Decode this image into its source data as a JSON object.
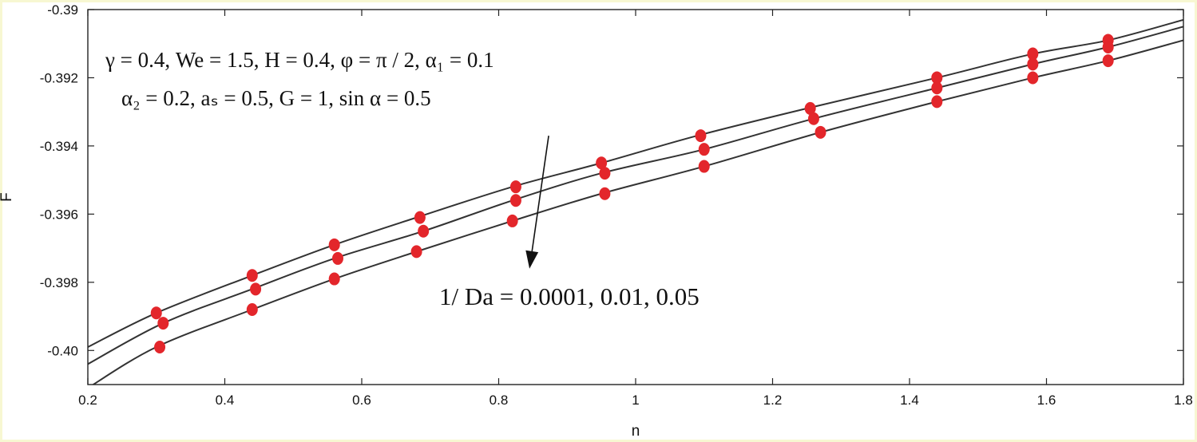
{
  "chart_data": {
    "type": "line",
    "xlabel": "n",
    "ylabel": "F",
    "xlim": [
      0.2,
      1.8
    ],
    "ylim": [
      -0.401,
      -0.39
    ],
    "xticks": [
      0.2,
      0.4,
      0.6,
      0.8,
      1,
      1.2,
      1.4,
      1.6,
      1.8
    ],
    "xtick_labels": [
      "0.2",
      "0.4",
      "0.6",
      "0.8",
      "1",
      "1.2",
      "1.4",
      "1.6",
      "1.8"
    ],
    "yticks": [
      -0.39,
      -0.392,
      -0.394,
      -0.396,
      -0.398,
      -0.4
    ],
    "ytick_labels": [
      "-0.39",
      "-0.392",
      "-0.394",
      "-0.396",
      "-0.398",
      "-0.40"
    ],
    "grid": false,
    "colors": {
      "line": "#333333",
      "marker": "#e3262b",
      "frame": "#f7f7d2"
    },
    "annotation_params_line1": "γ = 0.4, We = 1.5, H = 0.4, φ = π / 2, α₁ = 0.1",
    "annotation_params_line2": "α₂ = 0.2, aₛ = 0.5, G = 1, sin α = 0.5",
    "annotation_da_label": "1/ Da = 0.0001, 0.01, 0.05",
    "annotation_arrow": {
      "from": [
        0.873,
        -0.3937
      ],
      "to": [
        0.845,
        -0.3976
      ]
    },
    "series": [
      {
        "x": [
          0.2,
          0.3,
          0.44,
          0.56,
          0.68,
          0.82,
          0.95,
          1.09,
          1.25,
          1.44,
          1.58,
          1.69,
          1.8
        ],
        "y": [
          -0.3999,
          -0.3989,
          -0.3978,
          -0.3969,
          -0.3961,
          -0.3952,
          -0.3945,
          -0.3937,
          -0.3929,
          -0.392,
          -0.3913,
          -0.3909,
          -0.3903
        ]
      },
      {
        "x": [
          0.2,
          0.31,
          0.44,
          0.56,
          0.69,
          0.82,
          0.95,
          1.1,
          1.26,
          1.44,
          1.58,
          1.69,
          1.8
        ],
        "y": [
          -0.4004,
          -0.3992,
          -0.3982,
          -0.3973,
          -0.3965,
          -0.3956,
          -0.3948,
          -0.3941,
          -0.3932,
          -0.3923,
          -0.3916,
          -0.3911,
          -0.3905
        ]
      },
      {
        "x": [
          0.2,
          0.3,
          0.44,
          0.56,
          0.68,
          0.82,
          0.95,
          1.1,
          1.27,
          1.44,
          1.58,
          1.69,
          1.8
        ],
        "y": [
          -0.4011,
          -0.3999,
          -0.3988,
          -0.3979,
          -0.3971,
          -0.3962,
          -0.3954,
          -0.3946,
          -0.3936,
          -0.3927,
          -0.392,
          -0.3915,
          -0.3909
        ]
      }
    ],
    "marker_points": [
      {
        "x": 0.3,
        "y": -0.3989
      },
      {
        "x": 0.31,
        "y": -0.3992
      },
      {
        "x": 0.305,
        "y": -0.3999
      },
      {
        "x": 0.44,
        "y": -0.3978
      },
      {
        "x": 0.445,
        "y": -0.3982
      },
      {
        "x": 0.44,
        "y": -0.3988
      },
      {
        "x": 0.56,
        "y": -0.3969
      },
      {
        "x": 0.565,
        "y": -0.3973
      },
      {
        "x": 0.56,
        "y": -0.3979
      },
      {
        "x": 0.685,
        "y": -0.3961
      },
      {
        "x": 0.69,
        "y": -0.3965
      },
      {
        "x": 0.68,
        "y": -0.3971
      },
      {
        "x": 0.825,
        "y": -0.3952
      },
      {
        "x": 0.825,
        "y": -0.3956
      },
      {
        "x": 0.82,
        "y": -0.3962
      },
      {
        "x": 0.95,
        "y": -0.3945
      },
      {
        "x": 0.955,
        "y": -0.3948
      },
      {
        "x": 0.955,
        "y": -0.3954
      },
      {
        "x": 1.095,
        "y": -0.3937
      },
      {
        "x": 1.1,
        "y": -0.3941
      },
      {
        "x": 1.1,
        "y": -0.3946
      },
      {
        "x": 1.255,
        "y": -0.3929
      },
      {
        "x": 1.26,
        "y": -0.3932
      },
      {
        "x": 1.27,
        "y": -0.3936
      },
      {
        "x": 1.44,
        "y": -0.392
      },
      {
        "x": 1.44,
        "y": -0.3923
      },
      {
        "x": 1.44,
        "y": -0.3927
      },
      {
        "x": 1.58,
        "y": -0.3913
      },
      {
        "x": 1.58,
        "y": -0.3916
      },
      {
        "x": 1.58,
        "y": -0.392
      },
      {
        "x": 1.69,
        "y": -0.3909
      },
      {
        "x": 1.69,
        "y": -0.3911
      },
      {
        "x": 1.69,
        "y": -0.3915
      }
    ]
  }
}
